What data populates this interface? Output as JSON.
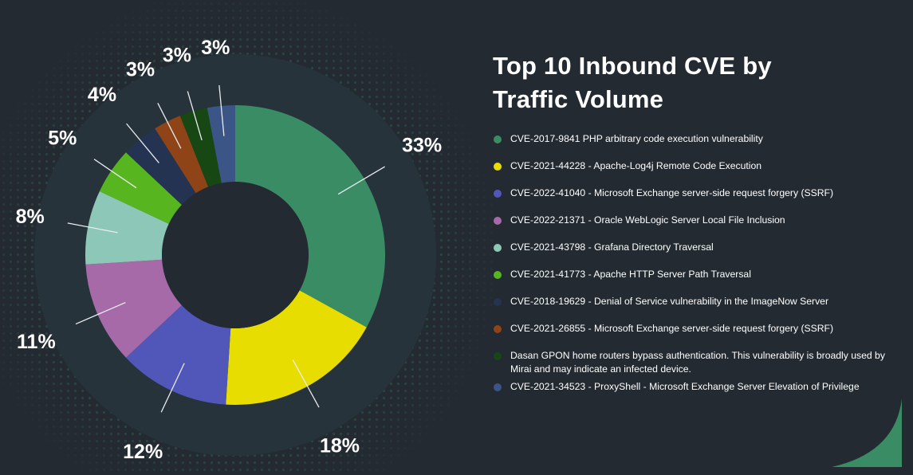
{
  "chart_data": {
    "type": "pie",
    "subtype": "donut",
    "title": "Top 10 Inbound CVE by Traffic Volume",
    "start_angle": "top (12 o'clock), clockwise",
    "legend_position": "right",
    "slices": [
      {
        "label": "CVE-2017-9841 PHP arbitrary code execution vulnerability",
        "value": 33,
        "display": "33%",
        "color": "#3a8c65"
      },
      {
        "label": "CVE-2021-44228 - Apache-Log4j Remote Code Execution",
        "value": 18,
        "display": "18%",
        "color": "#e8dd00"
      },
      {
        "label": "CVE-2022-41040 - Microsoft Exchange server-side request forgery (SSRF)",
        "value": 12,
        "display": "12%",
        "color": "#5157b9"
      },
      {
        "label": "CVE-2022-21371 - Oracle WebLogic Server Local File Inclusion",
        "value": 11,
        "display": "11%",
        "color": "#a76aa8"
      },
      {
        "label": "CVE-2021-43798 - Grafana Directory Traversal",
        "value": 8,
        "display": "8%",
        "color": "#8dc7b8"
      },
      {
        "label": "CVE-2021-41773 - Apache HTTP Server Path Traversal",
        "value": 5,
        "display": "5%",
        "color": "#57b61f"
      },
      {
        "label": "CVE-2018-19629 - Denial of Service vulnerability in the ImageNow Server",
        "value": 4,
        "display": "4%",
        "color": "#243352"
      },
      {
        "label": "CVE-2021-26855 - Microsoft Exchange server-side request forgery (SSRF)",
        "value": 3,
        "display": "3%",
        "color": "#8e4416"
      },
      {
        "label": "Dasan GPON home routers bypass authentication. This vulnerability is broadly used by Mirai and may indicate an infected device.",
        "value": 3,
        "display": "3%",
        "color": "#174713"
      },
      {
        "label": "CVE-2021-34523 - ProxyShell - Microsoft Exchange Server Elevation of Privilege",
        "value": 3,
        "display": "3%",
        "color": "#3b5586"
      }
    ]
  },
  "theme": {
    "background": "#242a32",
    "ring_background": "#27333a",
    "accent": "#3a8c65",
    "text": "#ffffff"
  }
}
